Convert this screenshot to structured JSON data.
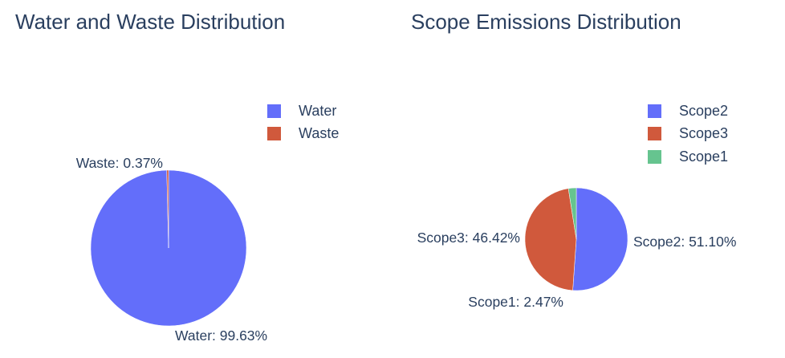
{
  "chart_data": [
    {
      "type": "pie",
      "title": "Water and Waste Distribution",
      "categories": [
        "Water",
        "Waste"
      ],
      "values": [
        99.63,
        0.37
      ],
      "value_format": "percent",
      "slice_labels": [
        "Water: 99.63%",
        "Waste: 0.37%"
      ],
      "legend": [
        "Water",
        "Waste"
      ],
      "legend_placement": "top-right",
      "colors": [
        "#636efa",
        "#d0593c"
      ]
    },
    {
      "type": "pie",
      "title": "Scope Emissions Distribution",
      "categories": [
        "Scope2",
        "Scope3",
        "Scope1"
      ],
      "values": [
        51.1,
        46.42,
        2.47
      ],
      "value_format": "percent",
      "slice_labels": [
        "Scope2: 51.10%",
        "Scope3: 46.42%",
        "Scope1: 2.47%"
      ],
      "legend": [
        "Scope2",
        "Scope3",
        "Scope1"
      ],
      "legend_placement": "top-right",
      "colors": [
        "#636efa",
        "#d0593c",
        "#66c48f"
      ]
    }
  ]
}
